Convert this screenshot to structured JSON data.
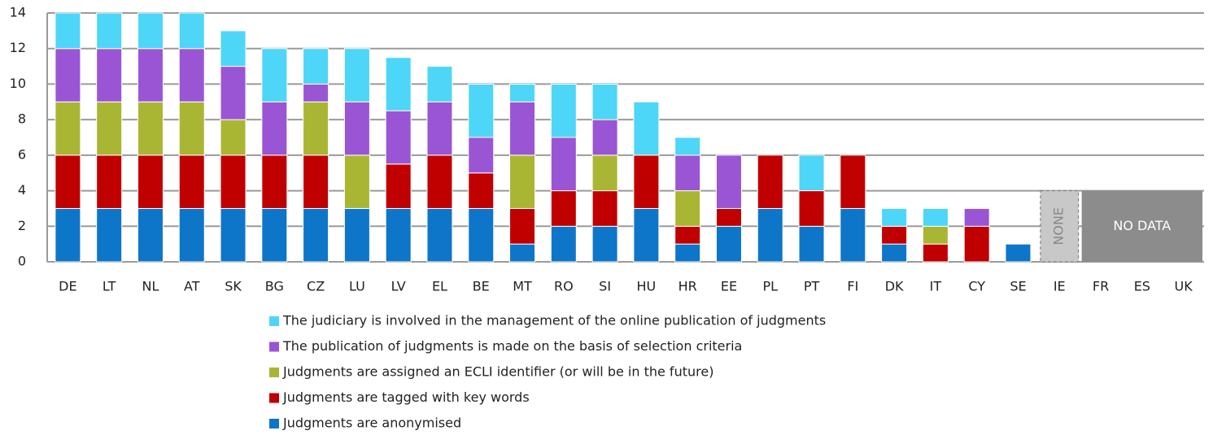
{
  "chart_data": {
    "type": "stacked-bar",
    "categories": [
      "DE",
      "LT",
      "NL",
      "AT",
      "SK",
      "BG",
      "CZ",
      "LU",
      "LV",
      "EL",
      "BE",
      "MT",
      "RO",
      "SI",
      "HU",
      "HR",
      "EE",
      "PL",
      "PT",
      "FI",
      "DK",
      "IT",
      "CY",
      "SE",
      "IE",
      "FR",
      "ES",
      "UK"
    ],
    "series": [
      {
        "name": "Judgments are anonymised",
        "color": "#0e76c8",
        "values": [
          3,
          3,
          3,
          3,
          3,
          3,
          3,
          3,
          3,
          3,
          3,
          1,
          2,
          2,
          3,
          1,
          2,
          3,
          2,
          3,
          1,
          0,
          0,
          1,
          null,
          null,
          null,
          null
        ]
      },
      {
        "name": "Judgments are tagged with key words",
        "color": "#c00000",
        "values": [
          3,
          3,
          3,
          3,
          3,
          3,
          3,
          0,
          2.5,
          3,
          2,
          2,
          2,
          2,
          3,
          1,
          1,
          3,
          2,
          3,
          1,
          1,
          2,
          0,
          null,
          null,
          null,
          null
        ]
      },
      {
        "name": "Judgments are assigned an ECLI identifier (or will be in the future)",
        "color": "#a9b634",
        "values": [
          3,
          3,
          3,
          3,
          2,
          0,
          3,
          3,
          0,
          0,
          0,
          3,
          0,
          2,
          0,
          2,
          0,
          0,
          0,
          0,
          0,
          1,
          0,
          0,
          null,
          null,
          null,
          null
        ]
      },
      {
        "name": "The publication of judgments is made on the basis of selection criteria",
        "color": "#9a55d4",
        "values": [
          3,
          3,
          3,
          3,
          3,
          3,
          1,
          3,
          3,
          3,
          2,
          3,
          3,
          2,
          0,
          2,
          3,
          0,
          0,
          0,
          0,
          0,
          1,
          0,
          null,
          null,
          null,
          null
        ]
      },
      {
        "name": "The judiciary is involved in the management of the online publication of judgments",
        "color": "#4dd6f7",
        "values": [
          2,
          2,
          2,
          2,
          2,
          3,
          2,
          3,
          3,
          2,
          3,
          1,
          3,
          2,
          3,
          1,
          0,
          0,
          2,
          0,
          1,
          1,
          0,
          0,
          null,
          null,
          null,
          null
        ]
      }
    ],
    "ylim": [
      0,
      14
    ],
    "yticks": [
      0,
      2,
      4,
      6,
      8,
      10,
      12,
      14
    ],
    "grid": true,
    "annotations": [
      {
        "text": "NONE",
        "categories": [
          "IE"
        ],
        "top": 4,
        "style": "dashed"
      },
      {
        "text": "NO DATA",
        "categories": [
          "FR",
          "ES",
          "UK"
        ],
        "top": 4,
        "style": "solid"
      }
    ]
  }
}
